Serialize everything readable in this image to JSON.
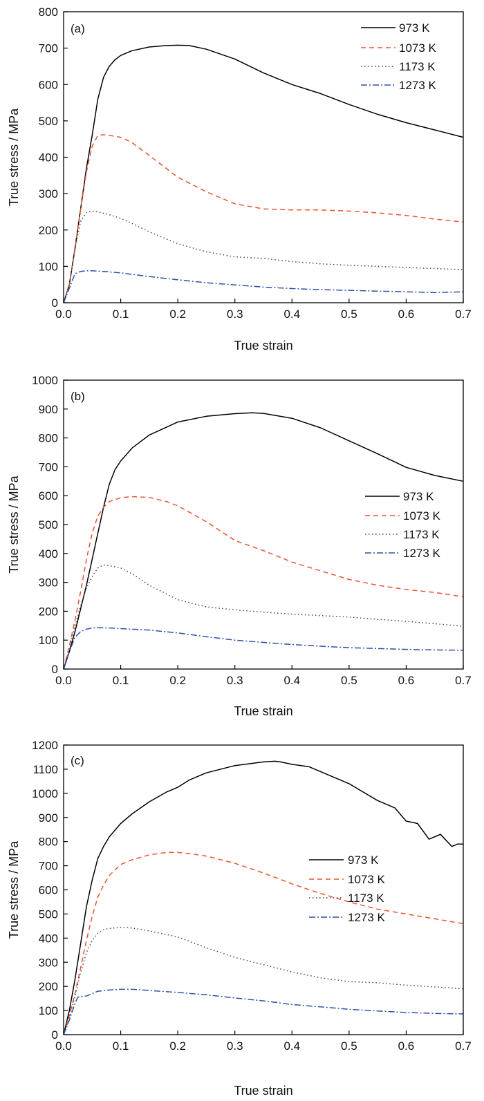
{
  "chart_data": [
    {
      "type": "line",
      "panel": "(a)",
      "xlabel": "True strain",
      "ylabel": "True stress / MPa",
      "xlim": [
        0,
        0.7
      ],
      "ylim": [
        0,
        800
      ],
      "xticks": [
        "0.0",
        "0.1",
        "0.2",
        "0.3",
        "0.4",
        "0.5",
        "0.6",
        "0.7"
      ],
      "yticks": [
        "0",
        "100",
        "200",
        "300",
        "400",
        "500",
        "600",
        "700",
        "800"
      ],
      "grid": false,
      "legend_position": "top-right",
      "series": [
        {
          "name": "973 K",
          "color": "#000000",
          "dash": "solid",
          "x": [
            0,
            0.01,
            0.02,
            0.03,
            0.04,
            0.05,
            0.06,
            0.07,
            0.08,
            0.09,
            0.1,
            0.12,
            0.15,
            0.18,
            0.2,
            0.22,
            0.25,
            0.3,
            0.35,
            0.4,
            0.45,
            0.5,
            0.55,
            0.6,
            0.65,
            0.7
          ],
          "y": [
            0,
            50,
            150,
            260,
            370,
            460,
            560,
            620,
            650,
            668,
            680,
            693,
            703,
            707,
            708,
            707,
            697,
            670,
            632,
            600,
            575,
            545,
            518,
            495,
            475,
            455
          ]
        },
        {
          "name": "1073 K",
          "color": "#e8532b",
          "dash": "dashed",
          "x": [
            0,
            0.01,
            0.02,
            0.03,
            0.04,
            0.05,
            0.06,
            0.07,
            0.08,
            0.1,
            0.12,
            0.15,
            0.2,
            0.25,
            0.3,
            0.35,
            0.4,
            0.45,
            0.5,
            0.55,
            0.6,
            0.65,
            0.7
          ],
          "y": [
            0,
            50,
            150,
            260,
            360,
            430,
            460,
            462,
            460,
            455,
            440,
            405,
            345,
            305,
            272,
            258,
            255,
            255,
            252,
            247,
            240,
            230,
            222
          ]
        },
        {
          "name": "1173 K",
          "color": "#444444",
          "dash": "dotted",
          "x": [
            0,
            0.01,
            0.02,
            0.03,
            0.04,
            0.05,
            0.06,
            0.08,
            0.1,
            0.12,
            0.15,
            0.2,
            0.25,
            0.3,
            0.35,
            0.4,
            0.45,
            0.5,
            0.55,
            0.6,
            0.65,
            0.7
          ],
          "y": [
            0,
            50,
            150,
            225,
            248,
            252,
            250,
            242,
            232,
            218,
            195,
            162,
            140,
            126,
            122,
            113,
            107,
            103,
            100,
            97,
            94,
            91
          ]
        },
        {
          "name": "1273 K",
          "color": "#2f4fa8",
          "dash": "dashdot",
          "x": [
            0,
            0.01,
            0.015,
            0.02,
            0.03,
            0.04,
            0.05,
            0.07,
            0.1,
            0.12,
            0.15,
            0.2,
            0.25,
            0.3,
            0.35,
            0.4,
            0.45,
            0.5,
            0.55,
            0.6,
            0.65,
            0.7
          ],
          "y": [
            0,
            40,
            60,
            80,
            86,
            88,
            88,
            86,
            82,
            78,
            72,
            63,
            55,
            49,
            43,
            39,
            36,
            34,
            32,
            30,
            28,
            30
          ]
        }
      ]
    },
    {
      "type": "line",
      "panel": "(b)",
      "xlabel": "True strain",
      "ylabel": "True stress / MPa",
      "xlim": [
        0,
        0.7
      ],
      "ylim": [
        0,
        1000
      ],
      "xticks": [
        "0.0",
        "0.1",
        "0.2",
        "0.3",
        "0.4",
        "0.5",
        "0.6",
        "0.7"
      ],
      "yticks": [
        "0",
        "100",
        "200",
        "300",
        "400",
        "500",
        "600",
        "700",
        "800",
        "900",
        "1000"
      ],
      "grid": false,
      "legend_position": "right",
      "series": [
        {
          "name": "973 K",
          "color": "#000000",
          "dash": "solid",
          "x": [
            0,
            0.01,
            0.02,
            0.03,
            0.04,
            0.05,
            0.06,
            0.07,
            0.08,
            0.09,
            0.1,
            0.12,
            0.15,
            0.2,
            0.25,
            0.3,
            0.33,
            0.35,
            0.4,
            0.45,
            0.5,
            0.55,
            0.6,
            0.65,
            0.7
          ],
          "y": [
            0,
            60,
            130,
            210,
            290,
            380,
            470,
            560,
            640,
            690,
            720,
            765,
            810,
            855,
            875,
            884,
            887,
            885,
            868,
            835,
            790,
            745,
            698,
            670,
            650
          ]
        },
        {
          "name": "1073 K",
          "color": "#e8532b",
          "dash": "dashed",
          "x": [
            0,
            0.01,
            0.02,
            0.03,
            0.04,
            0.05,
            0.06,
            0.07,
            0.08,
            0.1,
            0.12,
            0.15,
            0.18,
            0.2,
            0.25,
            0.3,
            0.35,
            0.4,
            0.45,
            0.5,
            0.55,
            0.6,
            0.65,
            0.7
          ],
          "y": [
            0,
            80,
            170,
            270,
            380,
            470,
            530,
            560,
            580,
            593,
            597,
            594,
            580,
            565,
            510,
            445,
            410,
            370,
            340,
            310,
            290,
            275,
            265,
            250
          ]
        },
        {
          "name": "1173 K",
          "color": "#444444",
          "dash": "dotted",
          "x": [
            0,
            0.01,
            0.02,
            0.03,
            0.04,
            0.05,
            0.06,
            0.07,
            0.08,
            0.1,
            0.12,
            0.15,
            0.2,
            0.25,
            0.3,
            0.35,
            0.4,
            0.45,
            0.5,
            0.55,
            0.6,
            0.65,
            0.7
          ],
          "y": [
            0,
            70,
            150,
            220,
            280,
            320,
            350,
            360,
            358,
            350,
            330,
            290,
            240,
            215,
            205,
            197,
            190,
            185,
            180,
            172,
            165,
            157,
            148
          ]
        },
        {
          "name": "1273 K",
          "color": "#2f4fa8",
          "dash": "dashdot",
          "x": [
            0,
            0.01,
            0.02,
            0.03,
            0.04,
            0.05,
            0.06,
            0.08,
            0.1,
            0.15,
            0.2,
            0.25,
            0.3,
            0.35,
            0.4,
            0.45,
            0.5,
            0.55,
            0.6,
            0.65,
            0.7
          ],
          "y": [
            0,
            60,
            110,
            130,
            138,
            142,
            143,
            142,
            140,
            135,
            125,
            112,
            100,
            92,
            85,
            79,
            74,
            71,
            68,
            66,
            65
          ]
        }
      ]
    },
    {
      "type": "line",
      "panel": "(c)",
      "xlabel": "True strain",
      "ylabel": "True stress / MPa",
      "xlim": [
        0,
        0.7
      ],
      "ylim": [
        0,
        1200
      ],
      "xticks": [
        "0.0",
        "0.1",
        "0.2",
        "0.3",
        "0.4",
        "0.5",
        "0.6",
        "0.7"
      ],
      "yticks": [
        "0",
        "100",
        "200",
        "300",
        "400",
        "500",
        "600",
        "700",
        "800",
        "900",
        "1000",
        "1100",
        "1200"
      ],
      "grid": false,
      "legend_position": "right",
      "series": [
        {
          "name": "973 K",
          "color": "#000000",
          "dash": "solid",
          "x": [
            0,
            0.01,
            0.02,
            0.03,
            0.04,
            0.05,
            0.06,
            0.07,
            0.08,
            0.1,
            0.12,
            0.15,
            0.18,
            0.2,
            0.22,
            0.25,
            0.3,
            0.35,
            0.37,
            0.38,
            0.4,
            0.43,
            0.45,
            0.5,
            0.55,
            0.58,
            0.6,
            0.62,
            0.64,
            0.66,
            0.68,
            0.69,
            0.7
          ],
          "y": [
            0,
            100,
            230,
            380,
            530,
            640,
            730,
            780,
            820,
            875,
            915,
            965,
            1005,
            1025,
            1055,
            1085,
            1115,
            1130,
            1133,
            1130,
            1120,
            1110,
            1090,
            1040,
            970,
            940,
            885,
            875,
            810,
            830,
            780,
            790,
            790
          ]
        },
        {
          "name": "1073 K",
          "color": "#e8532b",
          "dash": "dashed",
          "x": [
            0,
            0.01,
            0.02,
            0.03,
            0.04,
            0.05,
            0.06,
            0.07,
            0.08,
            0.1,
            0.12,
            0.15,
            0.18,
            0.2,
            0.22,
            0.25,
            0.3,
            0.35,
            0.4,
            0.45,
            0.5,
            0.55,
            0.6,
            0.65,
            0.7
          ],
          "y": [
            0,
            80,
            170,
            280,
            390,
            490,
            570,
            620,
            660,
            705,
            725,
            745,
            755,
            755,
            750,
            740,
            710,
            670,
            625,
            585,
            550,
            520,
            500,
            480,
            460
          ]
        },
        {
          "name": "1173 K",
          "color": "#444444",
          "dash": "dotted",
          "x": [
            0,
            0.01,
            0.02,
            0.03,
            0.04,
            0.05,
            0.06,
            0.07,
            0.08,
            0.1,
            0.12,
            0.15,
            0.2,
            0.25,
            0.3,
            0.35,
            0.4,
            0.45,
            0.5,
            0.55,
            0.6,
            0.65,
            0.7
          ],
          "y": [
            0,
            70,
            160,
            260,
            340,
            390,
            420,
            435,
            440,
            445,
            442,
            430,
            405,
            360,
            320,
            290,
            260,
            235,
            220,
            215,
            205,
            198,
            190
          ]
        },
        {
          "name": "1273 K",
          "color": "#2f4fa8",
          "dash": "dashdot",
          "x": [
            0,
            0.01,
            0.02,
            0.025,
            0.03,
            0.04,
            0.05,
            0.06,
            0.08,
            0.1,
            0.12,
            0.15,
            0.2,
            0.25,
            0.3,
            0.35,
            0.4,
            0.45,
            0.5,
            0.55,
            0.6,
            0.65,
            0.7
          ],
          "y": [
            0,
            60,
            130,
            155,
            158,
            160,
            170,
            180,
            185,
            188,
            188,
            183,
            175,
            165,
            152,
            140,
            125,
            115,
            105,
            98,
            92,
            88,
            86
          ]
        }
      ]
    }
  ]
}
